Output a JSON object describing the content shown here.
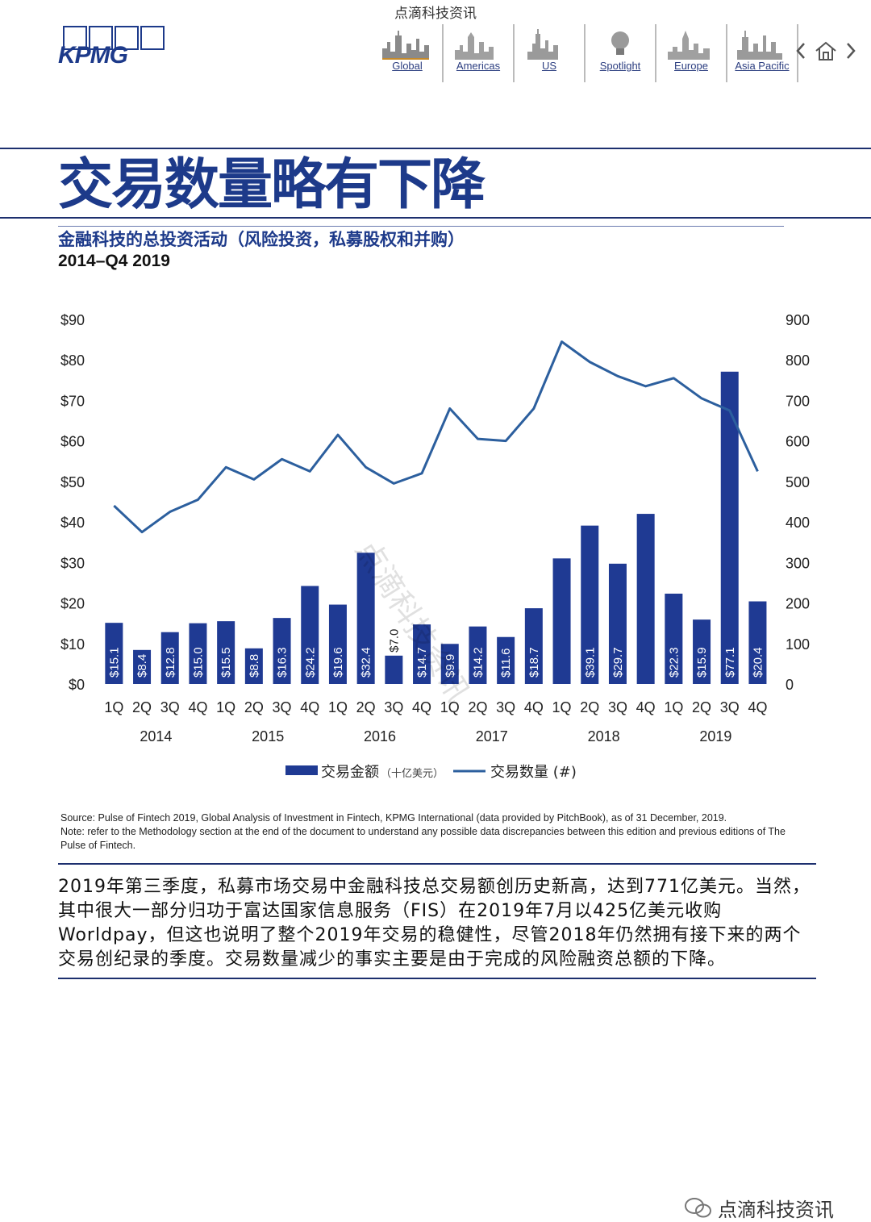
{
  "top_watermark": "点滴科技资讯",
  "logo": {
    "text": "KPMG"
  },
  "nav": {
    "items": [
      {
        "label": "Global"
      },
      {
        "label": "Americas"
      },
      {
        "label": "US"
      },
      {
        "label": "Spotlight"
      },
      {
        "label": "Europe"
      },
      {
        "label": "Asia Pacific"
      }
    ],
    "prev_icon": "chevron-left-icon",
    "home_icon": "home-icon",
    "next_icon": "chevron-right-icon"
  },
  "page_title": "交易数量略有下降",
  "subtitle": "金融科技的总投资活动（风险投资，私募股权和并购）",
  "period": "2014–Q4 2019",
  "chart_data": {
    "type": "bar",
    "quarters": [
      "1Q",
      "2Q",
      "3Q",
      "4Q",
      "1Q",
      "2Q",
      "3Q",
      "4Q",
      "1Q",
      "2Q",
      "3Q",
      "4Q",
      "1Q",
      "2Q",
      "3Q",
      "4Q",
      "1Q",
      "2Q",
      "3Q",
      "4Q",
      "1Q",
      "2Q",
      "3Q",
      "4Q"
    ],
    "years": [
      "2014",
      "2015",
      "2016",
      "2017",
      "2018",
      "2019"
    ],
    "bar_labels": [
      "$15.1",
      "$8.4",
      "$12.8",
      "$15.0",
      "$15.5",
      "$8.8",
      "$16.3",
      "$24.2",
      "$19.6",
      "$32.4",
      "$7.0",
      "$14.7",
      "$9.9",
      "$14.2",
      "$11.6",
      "$18.7",
      "",
      "$39.1",
      "$29.7",
      "",
      "$22.3",
      "$15.9",
      "$77.1",
      "$20.4"
    ],
    "deal_value": [
      15.1,
      8.4,
      12.8,
      15.0,
      15.5,
      8.8,
      16.3,
      24.2,
      19.6,
      32.4,
      7.0,
      14.7,
      9.9,
      14.2,
      11.6,
      18.7,
      31.0,
      39.1,
      29.7,
      42.0,
      22.3,
      15.9,
      77.1,
      20.4
    ],
    "deal_count": [
      440,
      375,
      425,
      455,
      535,
      505,
      555,
      525,
      615,
      535,
      495,
      520,
      680,
      605,
      600,
      680,
      845,
      795,
      760,
      735,
      755,
      705,
      675,
      525
    ],
    "left_axis_ticks": [
      "$90",
      "$80",
      "$70",
      "$60",
      "$50",
      "$40",
      "$30",
      "$20",
      "$10",
      "$0"
    ],
    "right_axis_ticks": [
      "900",
      "800",
      "700",
      "600",
      "500",
      "400",
      "300",
      "200",
      "100",
      "0"
    ],
    "left_axis_values": [
      90,
      80,
      70,
      60,
      50,
      40,
      30,
      20,
      10,
      0
    ],
    "right_axis_values": [
      900,
      800,
      700,
      600,
      500,
      400,
      300,
      200,
      100,
      0
    ],
    "ylim": [
      0,
      90
    ],
    "y2lim": [
      0,
      900
    ],
    "legend": {
      "bar": "交易金额",
      "bar_unit": "（十亿美元）",
      "line": "交易数量 (#)",
      "position": "bottom"
    },
    "watermark": "点滴科技资讯",
    "colors": {
      "bar": "#1f3a93",
      "line": "#2c5f9e"
    },
    "grid": false
  },
  "notes": {
    "source": "Source: Pulse of Fintech 2019, Global Analysis of Investment in Fintech, KPMG International (data provided by PitchBook), as of 31 December, 2019.",
    "note": "Note: refer to the Methodology section at the end of the document to understand any possible data discrepancies between this edition and previous editions of The Pulse of Fintech."
  },
  "body_text": "2019年第三季度，私募市场交易中金融科技总交易额创历史新高，达到771亿美元。当然，其中很大一部分归功于富达国家信息服务（FIS）在2019年7月以425亿美元收购Worldpay，但这也说明了整个2019年交易的稳健性，尽管2018年仍然拥有接下来的两个交易创纪录的季度。交易数量减少的事实主要是由于完成的风险融资总额的下降。",
  "footer_watermark": "点滴科技资讯",
  "footer_icon": "wechat-icon"
}
